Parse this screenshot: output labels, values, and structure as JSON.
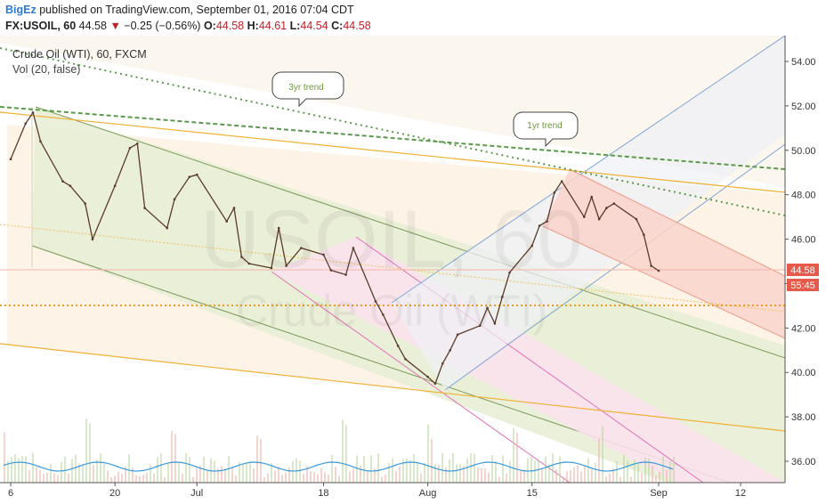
{
  "header": {
    "author": "BigEz",
    "published_text": "published on TradingView.com, September 01, 2016 07:04 CDT",
    "symbol": "FX:USOIL, 60",
    "last": "44.58",
    "change": "−0.25 (−0.56%)",
    "o_label": "O:",
    "o_value": "44.58",
    "h_label": "H:",
    "h_value": "44.61",
    "l_label": "L:",
    "l_value": "44.54",
    "c_label": "C:",
    "c_value": "44.58"
  },
  "legend": {
    "instrument": "Crude Oil (WTI), 60, FXCM",
    "volume": "Vol (20, false)"
  },
  "watermark": {
    "symbol": "USOIL, 60",
    "name": "Crude Oil (WTI)"
  },
  "annotations": [
    {
      "text": "3yr trend"
    },
    {
      "text": "1yr trend"
    }
  ],
  "price_badges": {
    "price": "44.58",
    "countdown": "55:45"
  },
  "colors": {
    "bg_band": "#fdf1e2",
    "green_channel": "#e3ebcf",
    "pink_channel": "#fbe4ef",
    "red_channel": "#f9d6ce",
    "blue_line": "#7fa6d8",
    "orange_line": "#f0b030",
    "dotted_green": "#5a9a4a",
    "price_red": "#e55a4a",
    "volume_blue": "#3a9ad9"
  },
  "chart_data": {
    "type": "line",
    "ylim": [
      35,
      55
    ],
    "y_ticks": [
      36,
      38,
      40,
      42,
      44,
      46,
      48,
      50,
      52,
      54
    ],
    "y_tick_labels": [
      "36.00",
      "38.00",
      "40.00",
      "42.00",
      "44.00",
      "46.00",
      "48.00",
      "50.00",
      "52.00",
      "54.00"
    ],
    "x_ticks": [
      "6",
      "20",
      "Jul",
      "18",
      "Aug",
      "15",
      "Sep",
      "12"
    ],
    "x_tick_dates": [
      "2016-06-06",
      "2016-06-20",
      "2016-07-01",
      "2016-07-18",
      "2016-08-01",
      "2016-08-15",
      "2016-09-01",
      "2016-09-12"
    ],
    "xlim": [
      "2016-06-06",
      "2016-09-19"
    ],
    "series": [
      {
        "values": [
          [
            "2016-06-06",
            49.6
          ],
          [
            "2016-06-08",
            51.2
          ],
          [
            "2016-06-09",
            51.7
          ],
          [
            "2016-06-10",
            50.4
          ],
          [
            "2016-06-13",
            48.6
          ],
          [
            "2016-06-14",
            48.4
          ],
          [
            "2016-06-16",
            47.6
          ],
          [
            "2016-06-17",
            46.0
          ],
          [
            "2016-06-20",
            48.4
          ],
          [
            "2016-06-22",
            50.1
          ],
          [
            "2016-06-23",
            50.3
          ],
          [
            "2016-06-24",
            47.4
          ],
          [
            "2016-06-27",
            46.5
          ],
          [
            "2016-06-28",
            47.8
          ],
          [
            "2016-06-30",
            48.8
          ],
          [
            "2016-07-01",
            48.9
          ],
          [
            "2016-07-05",
            46.8
          ],
          [
            "2016-07-06",
            47.4
          ],
          [
            "2016-07-07",
            45.2
          ],
          [
            "2016-07-08",
            44.9
          ],
          [
            "2016-07-11",
            44.7
          ],
          [
            "2016-07-12",
            46.5
          ],
          [
            "2016-07-13",
            44.8
          ],
          [
            "2016-07-15",
            45.6
          ],
          [
            "2016-07-18",
            45.3
          ],
          [
            "2016-07-19",
            44.6
          ],
          [
            "2016-07-21",
            44.4
          ],
          [
            "2016-07-22",
            45.6
          ],
          [
            "2016-07-25",
            43.2
          ],
          [
            "2016-07-26",
            42.6
          ],
          [
            "2016-07-28",
            41.2
          ],
          [
            "2016-07-29",
            40.6
          ],
          [
            "2016-08-01",
            39.8
          ],
          [
            "2016-08-02",
            39.5
          ],
          [
            "2016-08-03",
            40.4
          ],
          [
            "2016-08-04",
            41.0
          ],
          [
            "2016-08-05",
            41.7
          ],
          [
            "2016-08-08",
            42.1
          ],
          [
            "2016-08-09",
            42.9
          ],
          [
            "2016-08-10",
            42.2
          ],
          [
            "2016-08-11",
            43.4
          ],
          [
            "2016-08-12",
            44.5
          ],
          [
            "2016-08-15",
            45.7
          ],
          [
            "2016-08-16",
            46.6
          ],
          [
            "2016-08-17",
            46.8
          ],
          [
            "2016-08-18",
            48.1
          ],
          [
            "2016-08-19",
            48.6
          ],
          [
            "2016-08-22",
            47.0
          ],
          [
            "2016-08-23",
            47.9
          ],
          [
            "2016-08-24",
            46.9
          ],
          [
            "2016-08-25",
            47.4
          ],
          [
            "2016-08-26",
            47.6
          ],
          [
            "2016-08-29",
            46.9
          ],
          [
            "2016-08-30",
            46.2
          ],
          [
            "2016-08-31",
            44.8
          ],
          [
            "2016-09-01",
            44.58
          ]
        ]
      }
    ]
  }
}
